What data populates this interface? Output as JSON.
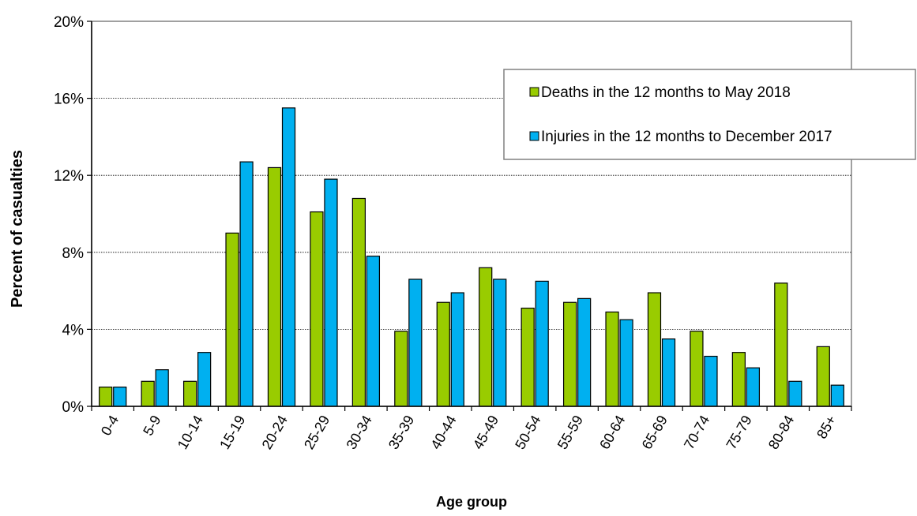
{
  "chart_data": {
    "type": "bar",
    "title": "",
    "xlabel": "Age group",
    "ylabel": "Percent of casualties",
    "ylim": [
      0,
      20
    ],
    "ytick_values": [
      0,
      4,
      8,
      12,
      16,
      20
    ],
    "ytick_labels": [
      "0%",
      "4%",
      "8%",
      "12%",
      "16%",
      "20%"
    ],
    "categories": [
      "0-4",
      "5-9",
      "10-14",
      "15-19",
      "20-24",
      "25-29",
      "30-34",
      "35-39",
      "40-44",
      "45-49",
      "50-54",
      "55-59",
      "60-64",
      "65-69",
      "70-74",
      "75-79",
      "80-84",
      "85+"
    ],
    "series": [
      {
        "name": "Deaths in the 12 months to May 2018",
        "color": "#99CC00",
        "values": [
          1.0,
          1.3,
          1.3,
          9.0,
          12.4,
          10.1,
          10.8,
          3.9,
          5.4,
          7.2,
          5.1,
          5.4,
          4.9,
          5.9,
          3.9,
          2.8,
          6.4,
          3.1
        ]
      },
      {
        "name": "Injuries in the 12 months to December 2017",
        "color": "#00B0F0",
        "values": [
          1.0,
          1.9,
          2.8,
          12.7,
          15.5,
          11.8,
          7.8,
          6.6,
          5.9,
          6.6,
          6.5,
          5.6,
          4.5,
          3.5,
          2.6,
          2.0,
          1.3,
          1.1
        ]
      }
    ],
    "grid": "horizontal gridlines at each y tick",
    "legend_position": "top-right"
  }
}
